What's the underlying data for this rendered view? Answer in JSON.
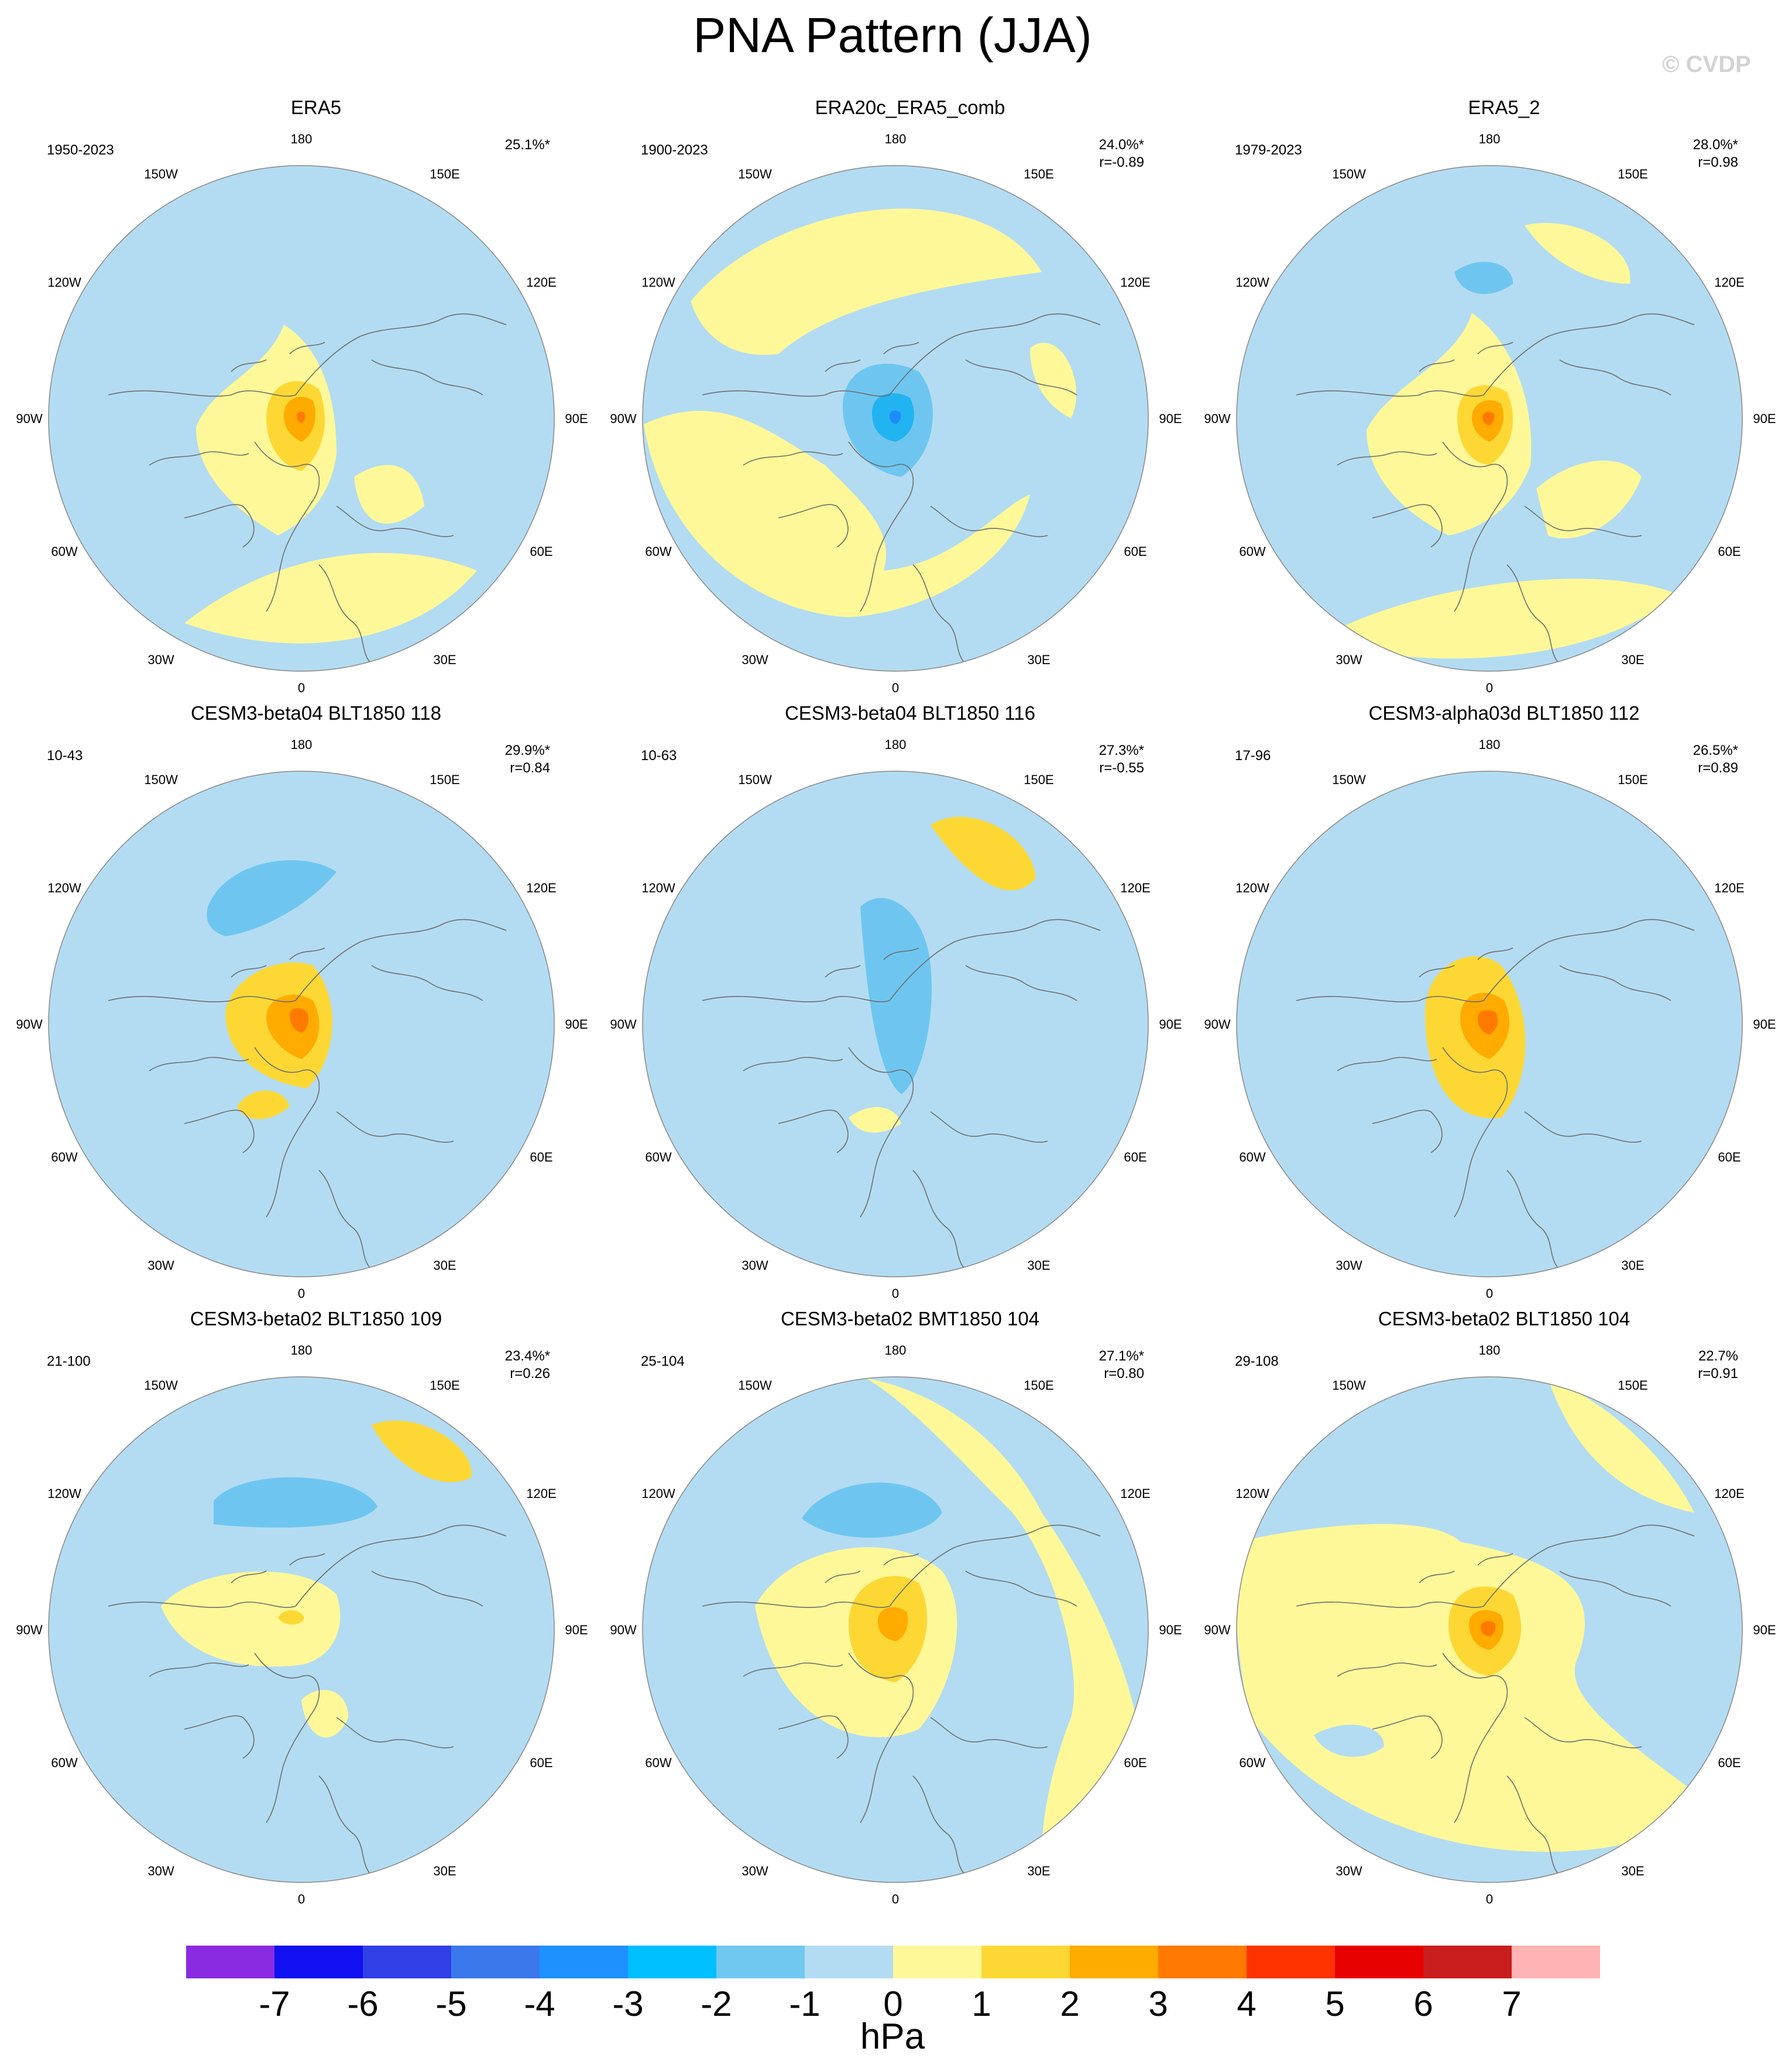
{
  "title": "PNA Pattern (JJA)",
  "watermark": "© CVDP",
  "lon_labels": {
    "top": "180",
    "bottom": "0",
    "left_upper_1": "150W",
    "left_upper_2": "120W",
    "left_mid": "90W",
    "left_lower_1": "60W",
    "left_lower_2": "30W",
    "right_upper_1": "150E",
    "right_upper_2": "120E",
    "right_mid": "90E",
    "right_lower_1": "60E",
    "right_lower_2": "30E"
  },
  "colors": {
    "ocean_neg": "#b3dcf2",
    "pos1": "#fff899",
    "pos2": "#fdd835",
    "pos3": "#ffab00",
    "pos4": "#ff7a00",
    "neg2": "#6ec6f0",
    "neg3": "#22b4f0",
    "neg4": "#1e8cff",
    "coast": "#6e6e6e",
    "rim": "#888888"
  },
  "panels": [
    {
      "title": "ERA5",
      "period": "1950-2023",
      "pct": "25.1%*",
      "corr": ""
    },
    {
      "title": "ERA20c_ERA5_comb",
      "period": "1900-2023",
      "pct": "24.0%*",
      "corr": "r=-0.89"
    },
    {
      "title": "ERA5_2",
      "period": "1979-2023",
      "pct": "28.0%*",
      "corr": "r=0.98"
    },
    {
      "title": "CESM3-beta04 BLT1850 118",
      "period": "10-43",
      "pct": "29.9%*",
      "corr": "r=0.84"
    },
    {
      "title": "CESM3-beta04 BLT1850 116",
      "period": "10-63",
      "pct": "27.3%*",
      "corr": "r=-0.55"
    },
    {
      "title": "CESM3-alpha03d BLT1850 112",
      "period": "17-96",
      "pct": "26.5%*",
      "corr": "r=0.89"
    },
    {
      "title": "CESM3-beta02 BLT1850 109",
      "period": "21-100",
      "pct": "23.4%*",
      "corr": "r=0.26"
    },
    {
      "title": "CESM3-beta02 BMT1850 104",
      "period": "25-104",
      "pct": "27.1%*",
      "corr": "r=0.80"
    },
    {
      "title": "CESM3-beta02 BLT1850 104",
      "period": "29-108",
      "pct": "22.7%",
      "corr": "r=0.91"
    }
  ],
  "colorbar": {
    "colors": [
      "#8a2be2",
      "#1010f0",
      "#3040e6",
      "#3a78ec",
      "#1e90ff",
      "#00bfff",
      "#70c8f0",
      "#b3dcf2",
      "#fff899",
      "#fdd835",
      "#ffab00",
      "#ff7a00",
      "#ff3300",
      "#e60000",
      "#c81e1e",
      "#ffb3b3"
    ],
    "labels": [
      "-7",
      "-6",
      "-5",
      "-4",
      "-3",
      "-2",
      "-1",
      "0",
      "1",
      "2",
      "3",
      "4",
      "5",
      "6",
      "7"
    ],
    "units": "hPa"
  }
}
